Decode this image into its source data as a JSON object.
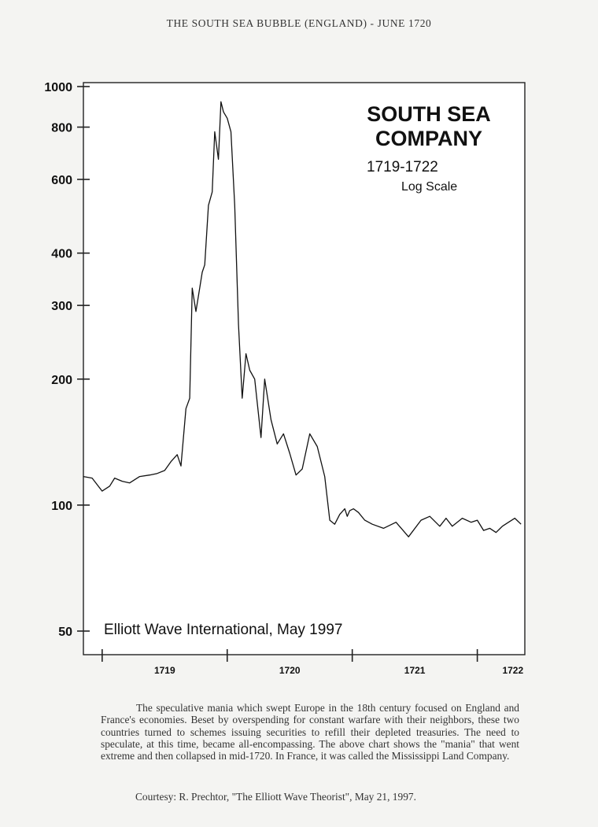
{
  "page": {
    "title": "THE SOUTH SEA BUBBLE (ENGLAND) - JUNE 1720",
    "caption": "The speculative mania which swept Europe in the 18th century focused on England and France's economies. Beset by overspending for constant warfare with their neighbors, these two countries turned to schemes issuing securities to refill their depleted treasuries. The need to speculate, at this time, became all-encompassing. The above chart shows the \"mania\" that went extreme and then collapsed in mid-1720. In France, it was called the Mississippi Land Company.",
    "courtesy": "Courtesy: R. Prechtor, \"The Elliott Wave Theorist\", May 21, 1997."
  },
  "chart_data": {
    "type": "line",
    "title": "SOUTH SEA COMPANY",
    "subtitle": "1719-1722",
    "scale_note": "Log Scale",
    "source": "Elliott Wave International, May 1997",
    "y_scale": "log",
    "ylim": [
      50,
      1000
    ],
    "y_ticks": [
      1000,
      800,
      600,
      400,
      300,
      200,
      100,
      50
    ],
    "xlim": [
      1718.85,
      1722.38
    ],
    "x_ticks": [
      1719,
      1720,
      1721,
      1722
    ],
    "x_tick_labels": [
      "1719",
      "1720",
      "1721",
      "1722"
    ],
    "grid": false,
    "x": [
      1718.85,
      1718.92,
      1719.0,
      1719.06,
      1719.1,
      1719.16,
      1719.22,
      1719.3,
      1719.38,
      1719.44,
      1719.5,
      1719.55,
      1719.6,
      1719.63,
      1719.67,
      1719.7,
      1719.72,
      1719.75,
      1719.78,
      1719.8,
      1719.82,
      1719.85,
      1719.88,
      1719.9,
      1719.93,
      1719.95,
      1719.97,
      1720.0,
      1720.03,
      1720.06,
      1720.09,
      1720.12,
      1720.15,
      1720.18,
      1720.22,
      1720.27,
      1720.3,
      1720.35,
      1720.4,
      1720.45,
      1720.5,
      1720.55,
      1720.6,
      1720.66,
      1720.72,
      1720.78,
      1720.82,
      1720.86,
      1720.9,
      1720.94,
      1720.96,
      1720.98,
      1721.01,
      1721.05,
      1721.1,
      1721.16,
      1721.25,
      1721.35,
      1721.45,
      1721.55,
      1721.62,
      1721.7,
      1721.75,
      1721.8,
      1721.88,
      1721.95,
      1722.0,
      1722.05,
      1722.1,
      1722.15,
      1722.2,
      1722.25,
      1722.3,
      1722.35
    ],
    "y": [
      117,
      116,
      108,
      111,
      116,
      114,
      113,
      117,
      118,
      119,
      121,
      127,
      132,
      124,
      170,
      180,
      330,
      290,
      330,
      360,
      375,
      520,
      560,
      780,
      670,
      920,
      870,
      840,
      780,
      520,
      270,
      180,
      230,
      210,
      200,
      145,
      200,
      160,
      140,
      148,
      133,
      118,
      122,
      148,
      138,
      117,
      92,
      90,
      95,
      98,
      94,
      97,
      98,
      96,
      92,
      90,
      88,
      91,
      84,
      92,
      94,
      89,
      93,
      89,
      93,
      91,
      92,
      87,
      88,
      86,
      89,
      91,
      93,
      90
    ]
  }
}
